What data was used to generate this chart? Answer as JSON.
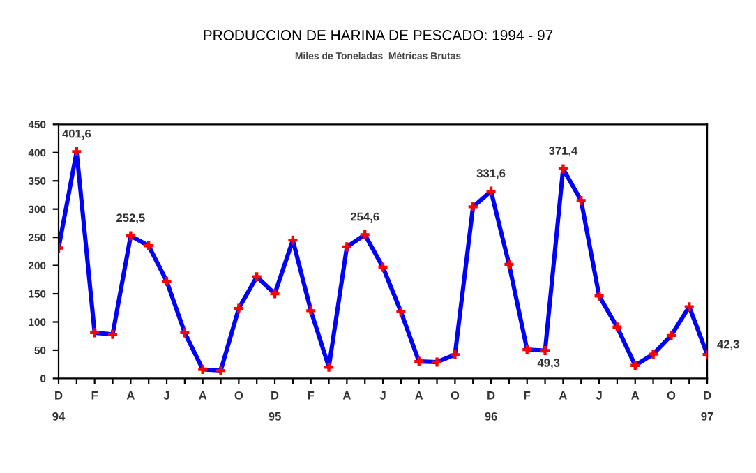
{
  "chart_data": {
    "type": "line",
    "title": "PRODUCCION DE HARINA DE PESCADO: 1994 - 97",
    "subtitle": "Miles de Toneladas  Métricas Brutas",
    "categories": [
      "D\n94",
      null,
      "F",
      null,
      "A",
      null,
      "J",
      null,
      "A",
      null,
      "O",
      null,
      "D\n95",
      null,
      "F",
      null,
      "A",
      null,
      "J",
      null,
      "A",
      null,
      "O",
      null,
      "D\n96",
      null,
      "F",
      null,
      "A",
      null,
      "J",
      null,
      "A",
      null,
      "O",
      null,
      "D\n97"
    ],
    "series": [
      {
        "color": "#0000ff",
        "colors": [
          "#ff0000",
          "#ff0000",
          "#ff0000",
          "#ff0000",
          "#ff0000",
          "#ff0000",
          "#ff0000",
          "#ff0000",
          "#ff0000",
          "#ff0000",
          "#ff0000",
          "#ff0000",
          "#ff0000",
          "#ff0000",
          "#ff0000",
          "#ff0000",
          "#ff0000",
          "#ff0000",
          "#ff0000",
          "#ff0000",
          "#ff0000",
          "#ff0000",
          "#ff0000",
          "#ff0000",
          "#ff0000",
          "#ff0000",
          "#ff0000",
          "#ff0000",
          "#ff0000",
          "#ff0000",
          "#ff0000",
          "#ff0000",
          "#ff0000",
          "#ff0000",
          "#ff0000",
          "#ff0000",
          "#ff0000"
        ],
        "values": [
          231,
          401.6,
          81,
          78,
          252.5,
          235,
          172,
          81,
          16,
          14,
          124,
          180,
          150,
          245,
          120,
          20,
          233,
          254.6,
          197,
          118,
          30,
          29,
          42,
          304,
          331.6,
          202,
          51,
          49.3,
          371.4,
          315,
          146,
          91,
          23,
          43,
          76,
          127,
          42.3
        ],
        "value_labels": [
          null,
          "401,6",
          null,
          null,
          "252,5",
          null,
          null,
          null,
          null,
          null,
          null,
          null,
          null,
          null,
          null,
          null,
          null,
          "254,6",
          null,
          null,
          null,
          null,
          null,
          null,
          "331,6",
          null,
          null,
          "49,3",
          "371,4",
          null,
          null,
          null,
          null,
          null,
          null,
          null,
          "42,3"
        ]
      }
    ],
    "ylim": [
      0,
      450
    ],
    "yticks": [
      0,
      50,
      100,
      150,
      200,
      250,
      300,
      350,
      400,
      450
    ],
    "grid": false,
    "marker": "cross",
    "line_style": "solid"
  }
}
